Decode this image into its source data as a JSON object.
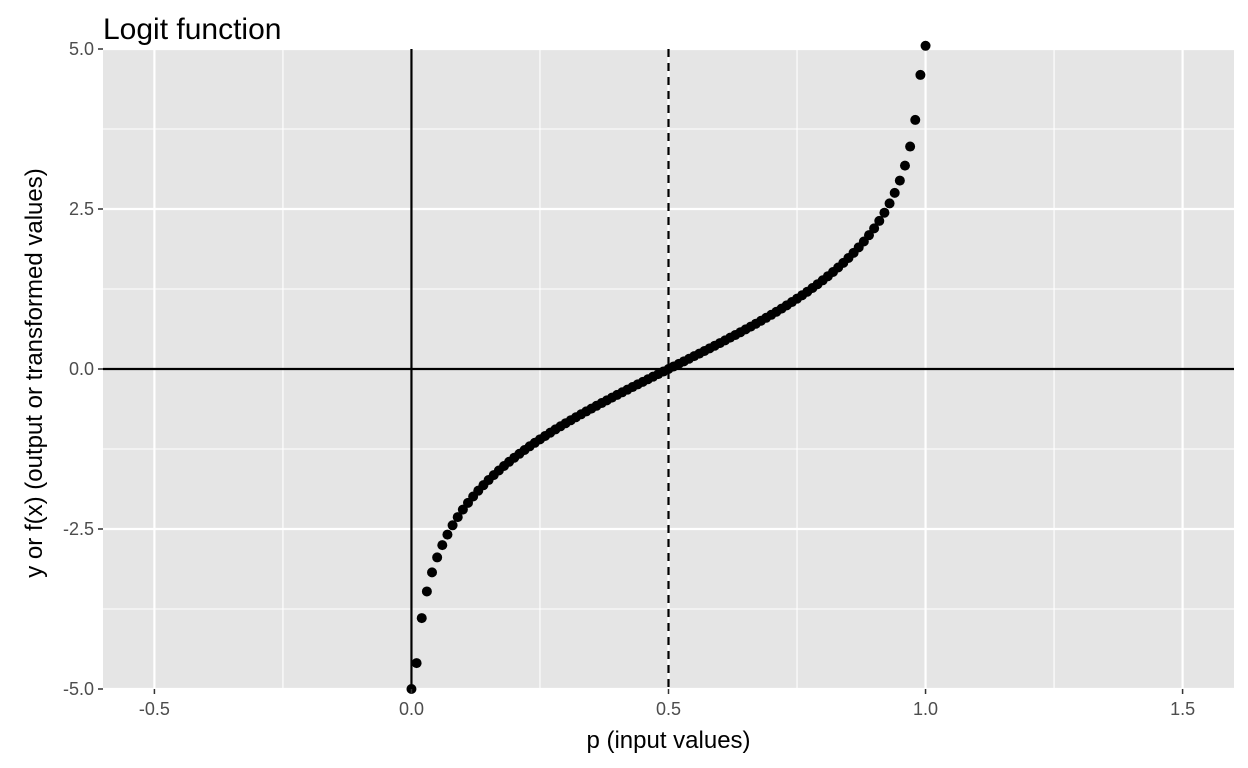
{
  "chart_data": {
    "type": "scatter",
    "title": "Logit function",
    "xlabel": "p (input values)",
    "ylabel": "y or f(x) (output or transformed values)",
    "xlim": [
      -0.6,
      1.6
    ],
    "ylim": [
      -5.0,
      5.0
    ],
    "x_ticks": [
      -0.5,
      0.0,
      0.5,
      1.0,
      1.5
    ],
    "x_tick_labels": [
      "-0.5",
      "0.0",
      "0.5",
      "1.0",
      "1.5"
    ],
    "y_ticks": [
      -5.0,
      -2.5,
      0.0,
      2.5,
      5.0
    ],
    "y_tick_labels": [
      "-5.0",
      "-2.5",
      "0.0",
      "2.5",
      "5.0"
    ],
    "grid": true,
    "panel_background": "#e5e5e5",
    "grid_color": "#ffffff",
    "point_color": "#000000",
    "reference_lines": [
      {
        "orientation": "horizontal",
        "value": 0.0,
        "style": "solid"
      },
      {
        "orientation": "vertical",
        "value": 0.0,
        "style": "solid"
      },
      {
        "orientation": "vertical",
        "value": 0.5,
        "style": "dashed"
      }
    ],
    "series": [
      {
        "x": [
          0.0,
          0.01,
          0.02,
          0.03,
          0.04,
          0.05,
          0.06,
          0.07,
          0.08,
          0.09,
          0.1,
          0.11,
          0.12,
          0.13,
          0.14,
          0.15,
          0.16,
          0.17,
          0.18,
          0.19,
          0.2,
          0.21,
          0.22,
          0.23,
          0.24,
          0.25,
          0.26,
          0.27,
          0.28,
          0.29,
          0.3,
          0.31,
          0.32,
          0.33,
          0.34,
          0.35,
          0.36,
          0.37,
          0.38,
          0.39,
          0.4,
          0.41,
          0.42,
          0.43,
          0.44,
          0.45,
          0.46,
          0.47,
          0.48,
          0.49,
          0.5,
          0.51,
          0.52,
          0.53,
          0.54,
          0.55,
          0.56,
          0.57,
          0.58,
          0.59,
          0.6,
          0.61,
          0.62,
          0.63,
          0.64,
          0.65,
          0.66,
          0.67,
          0.68,
          0.69,
          0.7,
          0.71,
          0.72,
          0.73,
          0.74,
          0.75,
          0.76,
          0.77,
          0.78,
          0.79,
          0.8,
          0.81,
          0.82,
          0.83,
          0.84,
          0.85,
          0.86,
          0.87,
          0.88,
          0.89,
          0.9,
          0.91,
          0.92,
          0.93,
          0.94,
          0.95,
          0.96,
          0.97,
          0.98,
          0.99,
          1.0
        ],
        "y": [
          -5.0,
          -4.595,
          -3.892,
          -3.476,
          -3.178,
          -2.944,
          -2.752,
          -2.587,
          -2.442,
          -2.314,
          -2.197,
          -2.091,
          -1.992,
          -1.901,
          -1.815,
          -1.735,
          -1.658,
          -1.586,
          -1.516,
          -1.45,
          -1.386,
          -1.325,
          -1.266,
          -1.208,
          -1.153,
          -1.099,
          -1.046,
          -0.995,
          -0.944,
          -0.895,
          -0.847,
          -0.8,
          -0.754,
          -0.708,
          -0.663,
          -0.619,
          -0.575,
          -0.532,
          -0.49,
          -0.447,
          -0.405,
          -0.364,
          -0.323,
          -0.282,
          -0.241,
          -0.201,
          -0.16,
          -0.12,
          -0.08,
          -0.04,
          0.0,
          0.04,
          0.08,
          0.12,
          0.16,
          0.201,
          0.241,
          0.282,
          0.323,
          0.364,
          0.405,
          0.447,
          0.49,
          0.532,
          0.575,
          0.619,
          0.663,
          0.708,
          0.754,
          0.8,
          0.847,
          0.895,
          0.944,
          0.995,
          1.046,
          1.099,
          1.153,
          1.208,
          1.266,
          1.325,
          1.386,
          1.45,
          1.516,
          1.586,
          1.658,
          1.735,
          1.815,
          1.901,
          1.992,
          2.091,
          2.197,
          2.314,
          2.442,
          2.587,
          2.752,
          2.944,
          3.178,
          3.476,
          3.892,
          4.595,
          5.05
        ]
      }
    ]
  }
}
